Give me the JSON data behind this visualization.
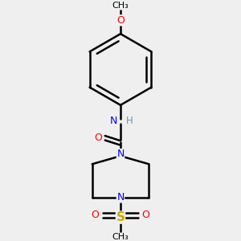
{
  "background_color": "#efefef",
  "atom_colors": {
    "C": "#000000",
    "N": "#0000ff",
    "O": "#ff0000",
    "S": "#ccaa00",
    "H": "#6699aa"
  },
  "bond_color": "#000000",
  "bond_width": 1.8,
  "figsize": [
    3.0,
    3.0
  ],
  "dpi": 100
}
